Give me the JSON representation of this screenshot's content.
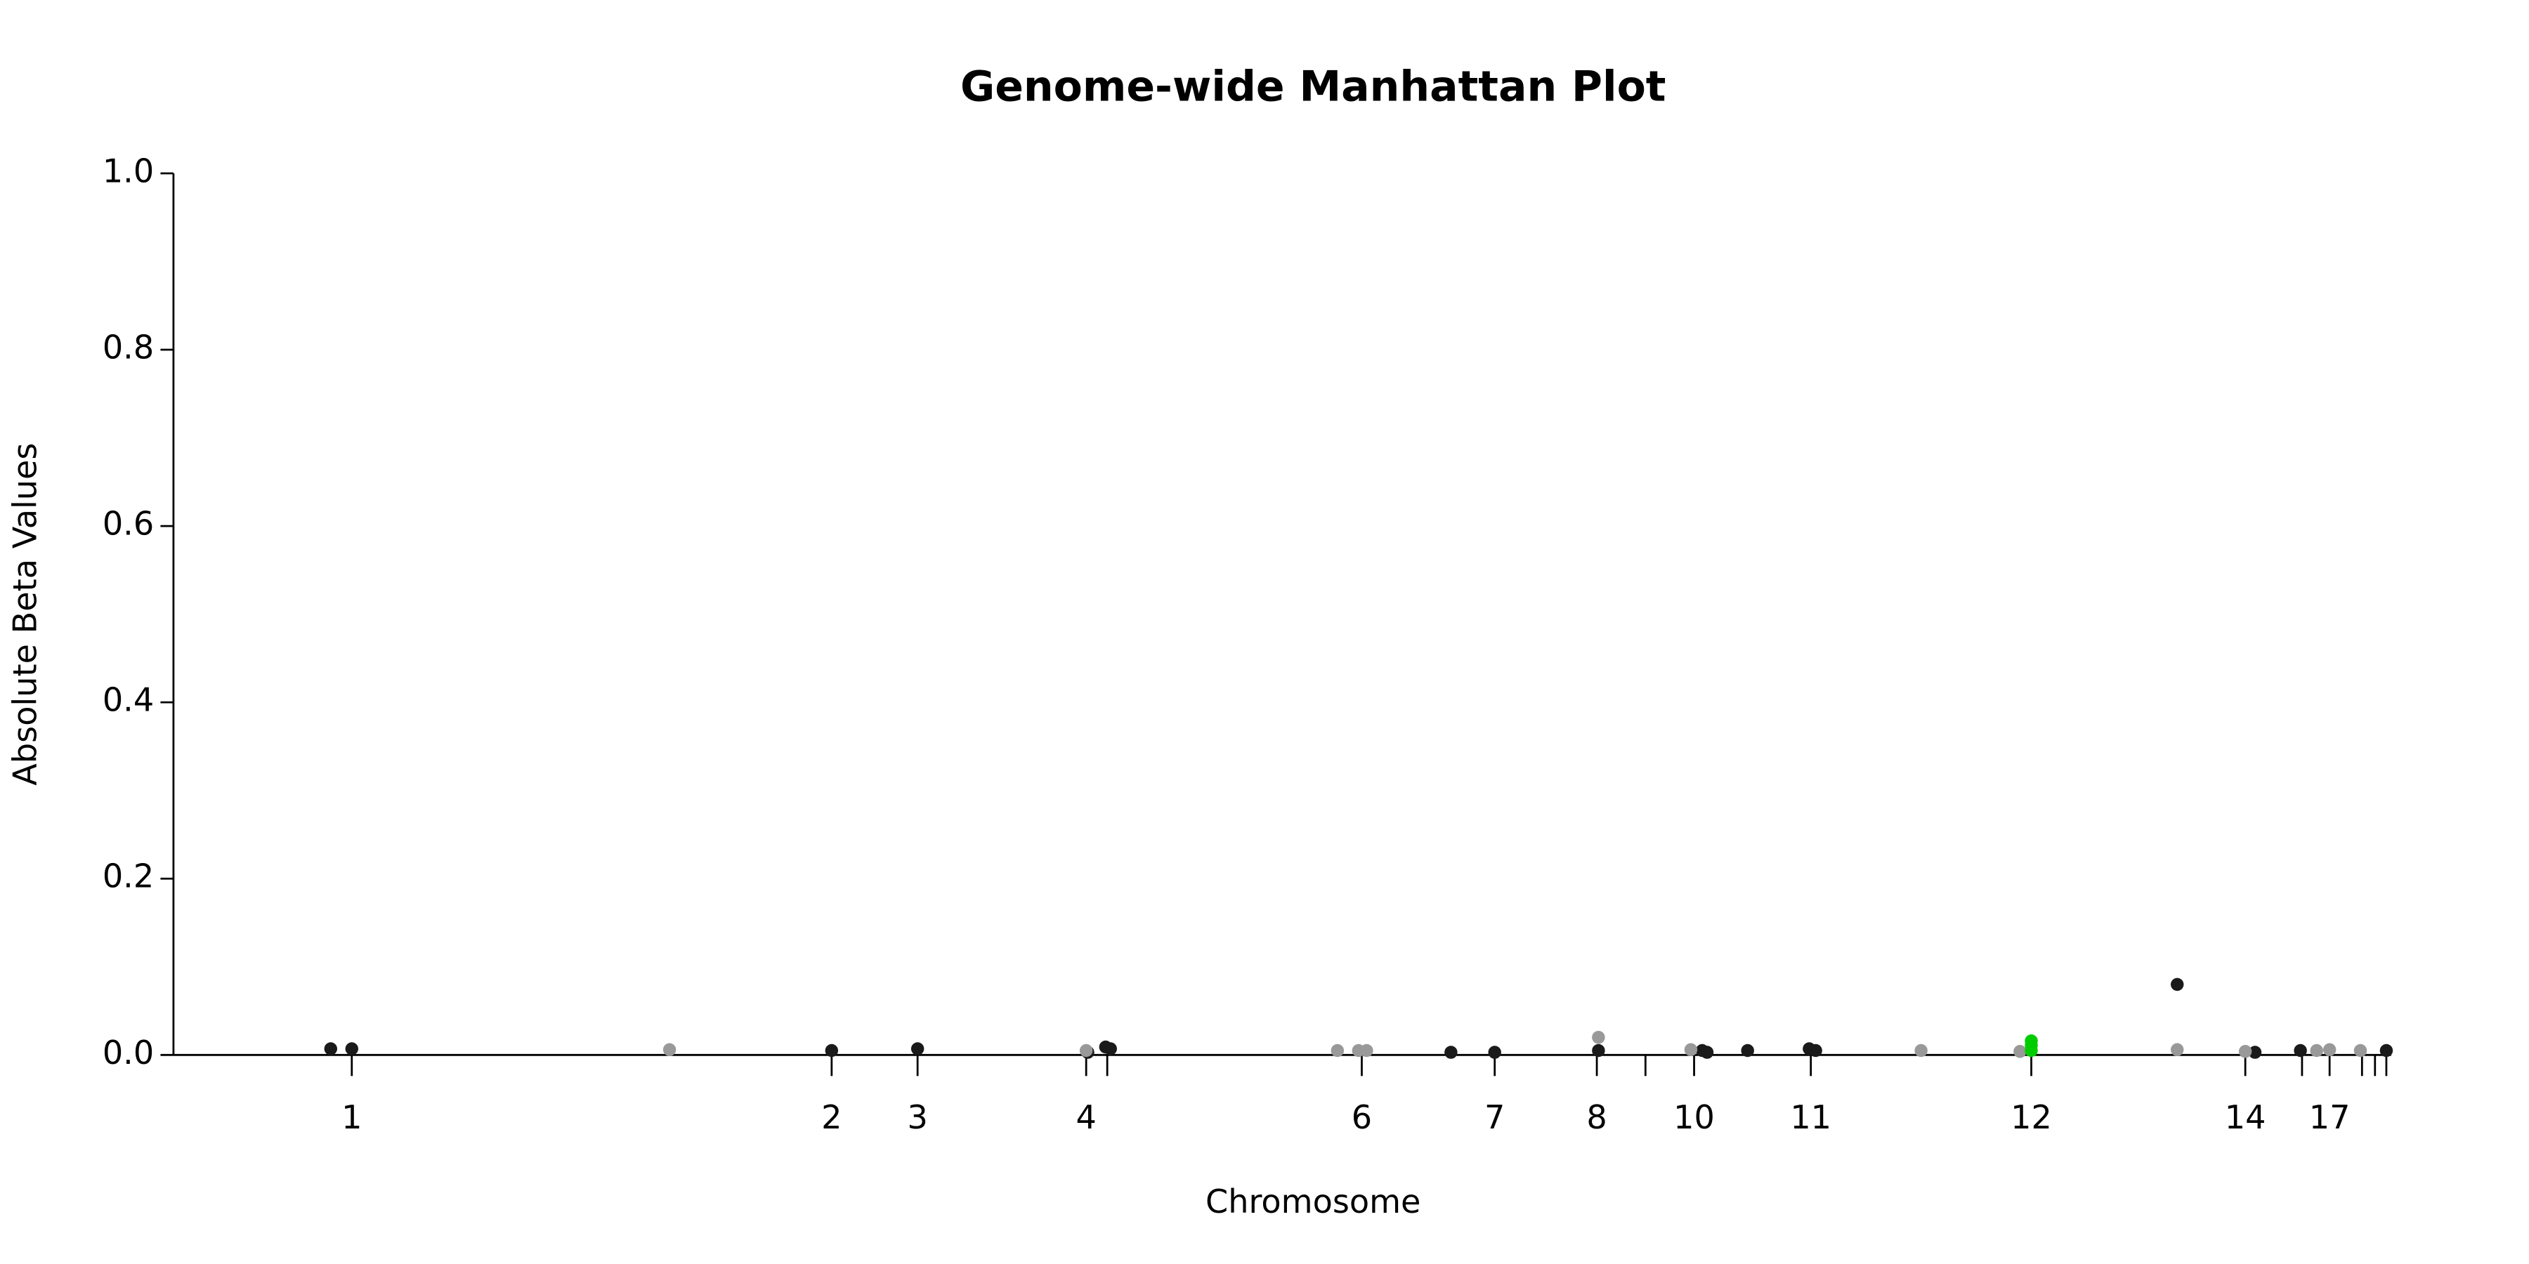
{
  "chart_data": {
    "type": "scatter",
    "title": "Genome-wide Manhattan Plot",
    "x_label": "Chromosome",
    "y_label": "Absolute Beta Values",
    "xlim": [
      0,
      1368
    ],
    "ylim": [
      0,
      1.0
    ],
    "yticks": [
      {
        "value": 0,
        "label": "0.0"
      },
      0.2,
      0.4,
      0.6,
      0.8,
      {
        "value": 1,
        "label": "1.0"
      }
    ],
    "xticks": [
      {
        "value": 110,
        "label": "1"
      },
      {
        "value": 406,
        "label": "2"
      },
      {
        "value": 459,
        "label": "3"
      },
      {
        "value": 563,
        "label": "4"
      },
      {
        "value": 576,
        "label": null
      },
      {
        "value": 733,
        "label": "6"
      },
      {
        "value": 815,
        "label": "7"
      },
      {
        "value": 878,
        "label": "8"
      },
      {
        "value": 908,
        "label": null
      },
      {
        "value": 938,
        "label": "10"
      },
      {
        "value": 1010,
        "label": "11"
      },
      {
        "value": 1146,
        "label": "12"
      },
      {
        "value": 1278,
        "label": "14"
      },
      {
        "value": 1313,
        "label": null
      },
      {
        "value": 1330,
        "label": "17"
      },
      {
        "value": 1350,
        "label": null
      },
      {
        "value": 1358,
        "label": null
      },
      {
        "value": 1365,
        "label": null
      }
    ],
    "series": [
      {
        "color": "#1a1a1a",
        "x": [
          97,
          110,
          406,
          459,
          564,
          575,
          578,
          788,
          815,
          879,
          943,
          946,
          971,
          1009,
          1013,
          1236,
          1284,
          1312,
          1365
        ],
        "values": [
          0.007,
          0.007,
          0.005,
          0.007,
          0.003,
          0.009,
          0.007,
          0.003,
          0.003,
          0.005,
          0.005,
          0.003,
          0.005,
          0.007,
          0.005,
          0.08,
          0.003,
          0.005,
          0.005
        ]
      },
      {
        "color": "#999999",
        "x": [
          306,
          563,
          718,
          731,
          736,
          879,
          936,
          1078,
          1139,
          1236,
          1278,
          1322,
          1330,
          1349
        ],
        "values": [
          0.006,
          0.005,
          0.005,
          0.005,
          0.005,
          0.02,
          0.006,
          0.005,
          0.004,
          0.006,
          0.004,
          0.005,
          0.006,
          0.005
        ]
      },
      {
        "color": "#00cc00",
        "x": [
          1146,
          1146,
          1146
        ],
        "values": [
          0.016,
          0.011,
          0.005
        ]
      }
    ]
  }
}
